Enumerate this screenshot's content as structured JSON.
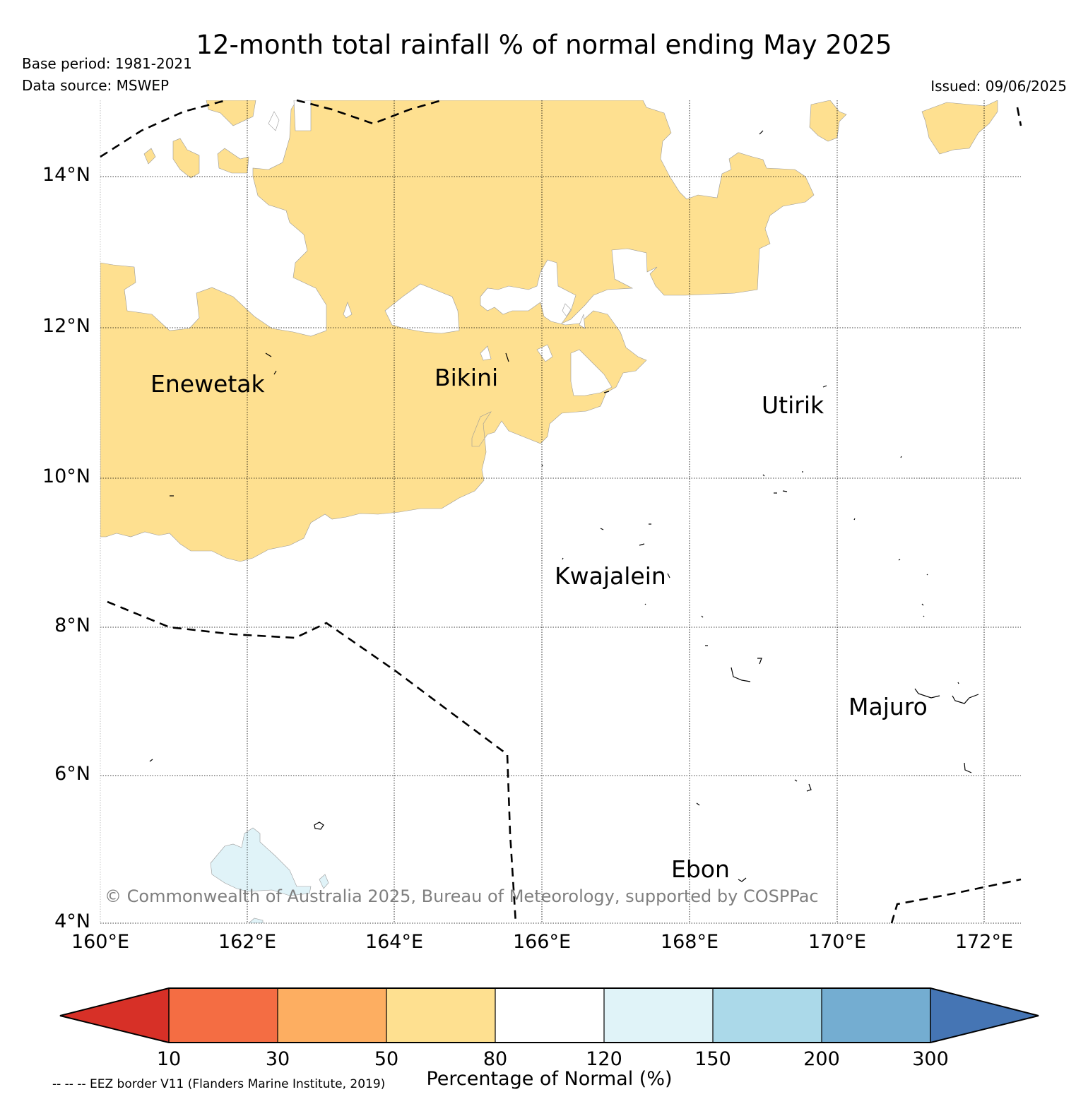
{
  "header": {
    "title": "12-month total rainfall % of normal ending May 2025",
    "base_period": "Base period: 1981-2021",
    "data_source": "Data source: MSWEP",
    "issued": "Issued: 09/06/2025"
  },
  "axes": {
    "lat_labels": [
      "14°N",
      "12°N",
      "10°N",
      "8°N",
      "6°N",
      "4°N"
    ],
    "lon_labels": [
      "160°E",
      "162°E",
      "164°E",
      "166°E",
      "168°E",
      "170°E",
      "172°E"
    ]
  },
  "places": {
    "enewetak": "Enewetak",
    "bikini": "Bikini",
    "utirik": "Utirik",
    "kwajalein": "Kwajalein",
    "majuro": "Majuro",
    "ebon": "Ebon"
  },
  "copyright": "© Commonwealth of Australia 2025, Bureau of Meteorology, supported by COSPPac",
  "colorbar": {
    "label": "Percentage of Normal (%)",
    "ticks": [
      "10",
      "30",
      "50",
      "80",
      "120",
      "150",
      "200",
      "300"
    ],
    "colors": {
      "lt10": "#d73027",
      "c10_30": "#f46d43",
      "c30_50": "#fdae61",
      "c50_80": "#fee090",
      "c80_120": "#ffffff",
      "c120_150": "#e0f3f8",
      "c150_200": "#abd9e9",
      "c200_300": "#74add1",
      "gt300": "#4575b4"
    }
  },
  "eez_note": "-- -- -- EEZ border V11 (Flanders Marine Institute, 2019)"
}
